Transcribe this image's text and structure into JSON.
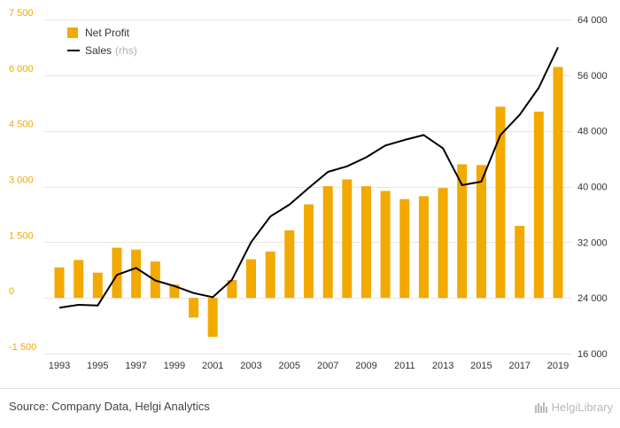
{
  "chart_data": {
    "type": "bar",
    "categories": [
      "1993",
      "1994",
      "1995",
      "1996",
      "1997",
      "1998",
      "1999",
      "2000",
      "2001",
      "2002",
      "2003",
      "2004",
      "2005",
      "2006",
      "2007",
      "2008",
      "2009",
      "2010",
      "2011",
      "2012",
      "2013",
      "2014",
      "2015",
      "2016",
      "2017",
      "2018",
      "2019"
    ],
    "x_tick_labels": [
      "1993",
      "1995",
      "1997",
      "1999",
      "2001",
      "2003",
      "2005",
      "2007",
      "2009",
      "2011",
      "2013",
      "2015",
      "2017",
      "2019"
    ],
    "series": [
      {
        "name": "Net Profit",
        "type": "bar",
        "axis": "left",
        "color": "#f2a900",
        "values": [
          820,
          1020,
          680,
          1350,
          1300,
          980,
          360,
          -530,
          -1050,
          480,
          1040,
          1250,
          1820,
          2520,
          3010,
          3190,
          3010,
          2880,
          2660,
          2740,
          2960,
          3600,
          3580,
          5150,
          1940,
          5020,
          6220
        ]
      },
      {
        "name": "Sales",
        "name_suffix": "(rhs)",
        "type": "line",
        "axis": "right",
        "color": "#000000",
        "values": [
          22600,
          23000,
          22900,
          27300,
          28300,
          26500,
          25700,
          24700,
          24100,
          26600,
          32000,
          35700,
          37400,
          39800,
          42100,
          42900,
          44200,
          45900,
          46700,
          47400,
          45500,
          40200,
          40700,
          47400,
          50300,
          54200,
          60000
        ]
      }
    ],
    "left_axis": {
      "ylim": [
        -1500,
        7500
      ],
      "ticks": [
        -1500,
        0,
        1500,
        3000,
        4500,
        6000,
        7500
      ],
      "tick_labels": [
        "-1 500",
        "0",
        "1 500",
        "3 000",
        "4 500",
        "6 000",
        "7 500"
      ],
      "color": "#f2a900"
    },
    "right_axis": {
      "ylim": [
        16000,
        64000
      ],
      "ticks": [
        16000,
        24000,
        32000,
        40000,
        48000,
        56000,
        64000
      ],
      "tick_labels": [
        "16 000",
        "24 000",
        "32 000",
        "40 000",
        "48 000",
        "56 000",
        "64 000"
      ]
    },
    "grid": true,
    "legend_position": "top-left"
  },
  "legend": {
    "bar_label": "Net Profit",
    "line_label": "Sales",
    "line_suffix": "(rhs)"
  },
  "footer": {
    "source": "Source: Company Data, Helgi Analytics",
    "brand": "HelgiLibrary"
  }
}
